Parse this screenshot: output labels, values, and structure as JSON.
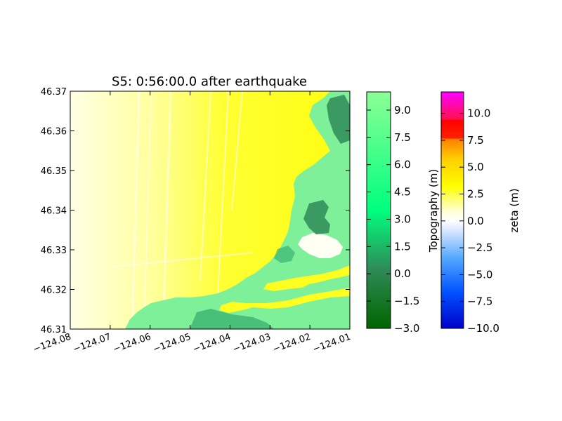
{
  "chart_data": {
    "type": "heatmap",
    "title": "S5: 0:56:00.0 after earthquake",
    "x_ticks": [
      "−124.08",
      "−124.07",
      "−124.06",
      "−124.05",
      "−124.04",
      "−124.03",
      "−124.02",
      "−124.01"
    ],
    "x_tick_values": [
      -124.08,
      -124.07,
      -124.06,
      -124.05,
      -124.04,
      -124.03,
      -124.02,
      -124.01
    ],
    "y_ticks": [
      "46.31",
      "46.32",
      "46.33",
      "46.34",
      "46.35",
      "46.36",
      "46.37"
    ],
    "y_tick_values": [
      46.31,
      46.32,
      46.33,
      46.34,
      46.35,
      46.36,
      46.37
    ],
    "xlim": [
      -124.08,
      -124.01
    ],
    "ylim": [
      46.31,
      46.37
    ],
    "colorbars": [
      {
        "label": "Topography (m)",
        "range": [
          -3.0,
          10.0
        ],
        "ticks": [
          "−3.0",
          "−1.5",
          "0.0",
          "1.5",
          "3.0",
          "4.5",
          "6.0",
          "7.5",
          "9.0"
        ],
        "tick_values": [
          -3.0,
          -1.5,
          0.0,
          1.5,
          3.0,
          4.5,
          6.0,
          7.5,
          9.0
        ],
        "colors": [
          "#006400",
          "#3cb371",
          "#00ff7f",
          "#7fff9a"
        ]
      },
      {
        "label": "zeta (m)",
        "range": [
          -10.0,
          12.0
        ],
        "ticks": [
          "−10.0",
          "−7.5",
          "−5.0",
          "−2.5",
          "0.0",
          "2.5",
          "5.0",
          "7.5",
          "10.0"
        ],
        "tick_values": [
          -10.0,
          -7.5,
          -5.0,
          -2.5,
          0.0,
          2.5,
          5.0,
          7.5,
          10.0
        ],
        "colors": [
          "#0000cc",
          "#1e90ff",
          "#ffffff",
          "#ffff00",
          "#ff8c00",
          "#ff0000",
          "#ff00ff"
        ]
      }
    ]
  },
  "colors": {
    "water_light": "#ffffd0",
    "water_main": "#fefe1a",
    "land": "#7df29a",
    "land_dark": "#2e8b57",
    "lake": "#ffffff"
  }
}
